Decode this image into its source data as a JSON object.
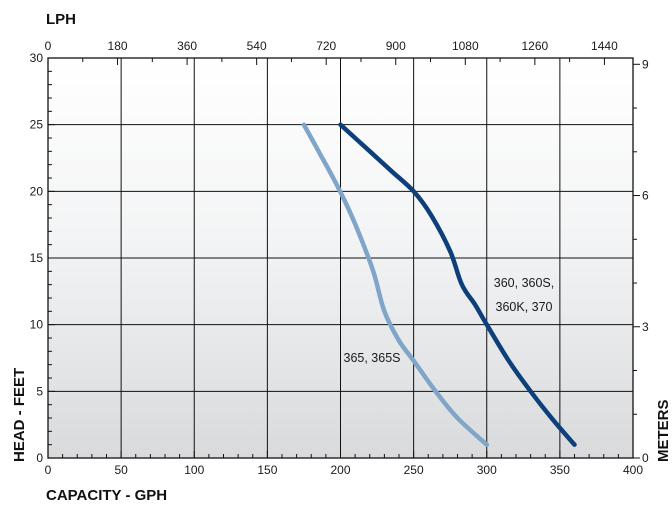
{
  "chart_data": {
    "type": "line",
    "xlabel": "CAPACITY - GPH",
    "ylabel": "HEAD - FEET",
    "x2label": "LPH",
    "y2label": "METERS",
    "xlim": [
      0,
      400
    ],
    "ylim": [
      0,
      30
    ],
    "x2lim": [
      0,
      1514
    ],
    "y2lim": [
      0,
      9.144
    ],
    "x_ticks": [
      0,
      50,
      100,
      150,
      200,
      250,
      300,
      350,
      400
    ],
    "y_ticks": [
      0,
      5,
      10,
      15,
      20,
      25,
      30
    ],
    "x2_ticks": [
      0,
      180,
      360,
      540,
      720,
      900,
      1080,
      1260,
      1440
    ],
    "y2_ticks": [
      0,
      3,
      6,
      9
    ],
    "grid": true,
    "series": [
      {
        "name": "360, 360S, 360K, 370",
        "color": "#0d3f7a",
        "x": [
          200,
          220,
          235,
          250,
          262,
          275,
          283,
          292,
          300,
          315,
          330,
          345,
          360
        ],
        "y": [
          25,
          23,
          21.5,
          20,
          18.2,
          15.5,
          13,
          11.5,
          10,
          7.3,
          5,
          2.9,
          1
        ]
      },
      {
        "name": "365, 365S",
        "color": "#7fa5c9",
        "x": [
          175,
          185,
          195,
          205,
          215,
          223,
          230,
          240,
          250,
          265,
          280,
          300
        ],
        "y": [
          25,
          23,
          21,
          18.8,
          16.2,
          13.8,
          11,
          8.8,
          7.3,
          5,
          3,
          1
        ]
      }
    ]
  }
}
